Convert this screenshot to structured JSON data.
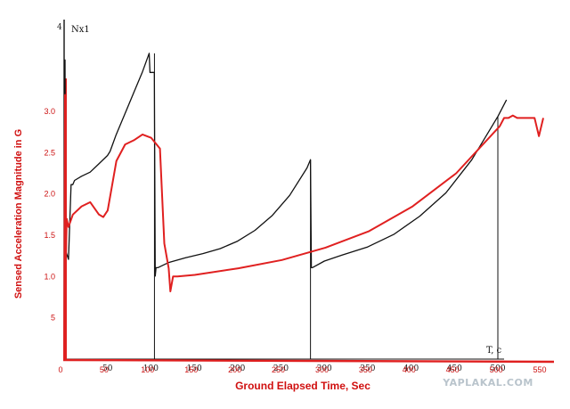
{
  "chart_data": {
    "type": "line",
    "xlabel": "Ground Elapsed Time, Sec",
    "ylabel": "Sensed Acceleration Magnitude in G",
    "black_axis": {
      "ylabel": "Nx1",
      "xlabel": "T, c",
      "y_ticks": [
        "4"
      ],
      "x_ticks": [
        "50",
        "100",
        "150",
        "200",
        "250",
        "300",
        "350",
        "400",
        "450",
        "500"
      ],
      "ylim": [
        0,
        4
      ],
      "xlim": [
        0,
        500
      ]
    },
    "red_axis": {
      "y_ticks": [
        "5",
        "1.0",
        "1.5",
        "2.0",
        "2.5",
        "3.0"
      ],
      "x_ticks": [
        "0",
        "50",
        "100",
        "150",
        "200",
        "250",
        "300",
        "350",
        "400",
        "450",
        "500",
        "550"
      ],
      "ylim": [
        0,
        3.0
      ],
      "xlim": [
        0,
        550
      ]
    },
    "series": [
      {
        "color": "#111111",
        "x": [
          0,
          1,
          1.5,
          2,
          5,
          8,
          10,
          12,
          20,
          30,
          40,
          50,
          53,
          60,
          70,
          80,
          90,
          98,
          99,
          100,
          104,
          105,
          106,
          108,
          120,
          140,
          160,
          180,
          200,
          220,
          240,
          260,
          280,
          284,
          285,
          286,
          300,
          320,
          350,
          380,
          410,
          440,
          470,
          500,
          510
        ],
        "y": [
          0,
          3.6,
          1.5,
          1.3,
          1.2,
          2.1,
          2.1,
          2.15,
          2.2,
          2.25,
          2.35,
          2.45,
          2.5,
          2.7,
          2.95,
          3.2,
          3.45,
          3.68,
          3.45,
          3.45,
          3.45,
          1.0,
          1.1,
          1.1,
          1.16,
          1.22,
          1.27,
          1.33,
          1.42,
          1.55,
          1.73,
          1.97,
          2.3,
          2.4,
          1.1,
          1.1,
          1.18,
          1.25,
          1.35,
          1.5,
          1.72,
          2.0,
          2.4,
          2.92,
          3.12
        ]
      },
      {
        "color": "#e02020",
        "x": [
          0,
          1,
          2,
          3,
          5,
          10,
          20,
          30,
          40,
          45,
          50,
          55,
          60,
          70,
          80,
          90,
          100,
          110,
          115,
          120,
          122,
          125,
          130,
          150,
          200,
          250,
          300,
          350,
          400,
          450,
          500,
          505,
          510,
          515,
          520,
          525,
          530,
          540,
          545,
          550
        ],
        "y": [
          0,
          3.2,
          1.2,
          1.7,
          1.6,
          1.75,
          1.85,
          1.9,
          1.75,
          1.72,
          1.8,
          2.1,
          2.4,
          2.6,
          2.65,
          2.72,
          2.68,
          2.55,
          1.4,
          1.1,
          0.82,
          1.0,
          1.0,
          1.02,
          1.1,
          1.2,
          1.35,
          1.55,
          1.85,
          2.25,
          2.82,
          2.92,
          2.92,
          2.95,
          2.92,
          2.92,
          2.92,
          2.92,
          2.7,
          2.92
        ]
      }
    ]
  },
  "watermark": "YAPLAKAL.COM"
}
